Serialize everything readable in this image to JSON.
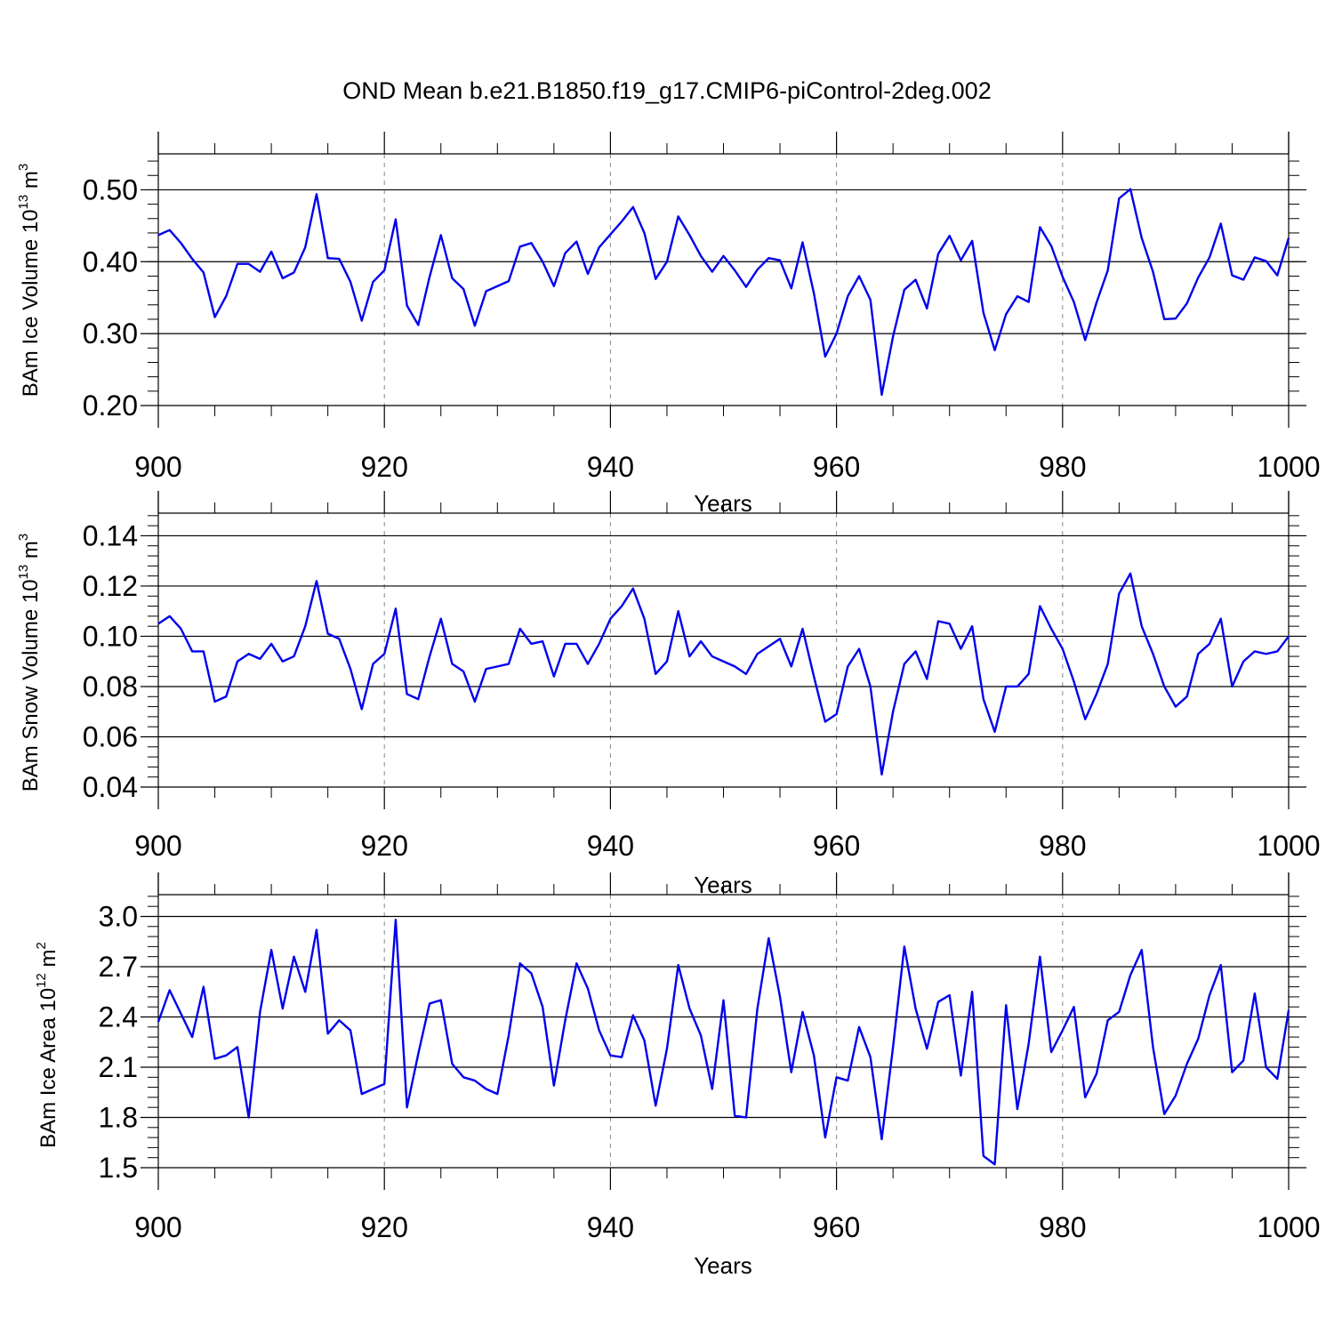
{
  "title": "OND Mean b.e21.B1850.f19_g17.CMIP6-piControl-2deg.002",
  "chart_data": [
    {
      "type": "line",
      "ylabel_prefix": "BAm Ice Volume 10",
      "ylabel_exp": "13",
      "ylabel_unit": "m",
      "ylabel_unit_exp": "3",
      "xlabel": "Years",
      "xlim": [
        900,
        1000
      ],
      "ylim": [
        0.2,
        0.55
      ],
      "yticks": [
        0.2,
        0.3,
        0.4,
        0.5
      ],
      "ytick_labels": [
        "0.20",
        "0.30",
        "0.40",
        "0.50"
      ],
      "xticks": [
        900,
        920,
        940,
        960,
        980,
        1000
      ],
      "xtick_labels": [
        "900",
        "920",
        "940",
        "960",
        "980",
        "1000"
      ],
      "color": "#0000ee",
      "series": [
        {
          "name": "ice_volume",
          "x_start": 900,
          "values": [
            0.437,
            0.444,
            0.426,
            0.404,
            0.385,
            0.323,
            0.352,
            0.397,
            0.397,
            0.386,
            0.414,
            0.377,
            0.385,
            0.42,
            0.494,
            0.405,
            0.404,
            0.372,
            0.318,
            0.372,
            0.388,
            0.459,
            0.339,
            0.312,
            0.379,
            0.437,
            0.377,
            0.362,
            0.311,
            0.359,
            0.366,
            0.373,
            0.421,
            0.426,
            0.4,
            0.366,
            0.412,
            0.428,
            0.383,
            0.42,
            0.438,
            0.456,
            0.476,
            0.44,
            0.376,
            0.4,
            0.463,
            0.437,
            0.408,
            0.386,
            0.408,
            0.388,
            0.365,
            0.389,
            0.405,
            0.402,
            0.363,
            0.427,
            0.356,
            0.268,
            0.3,
            0.352,
            0.38,
            0.347,
            0.215,
            0.296,
            0.361,
            0.375,
            0.335,
            0.411,
            0.436,
            0.402,
            0.429,
            0.329,
            0.277,
            0.327,
            0.352,
            0.344,
            0.448,
            0.422,
            0.379,
            0.344,
            0.291,
            0.343,
            0.388,
            0.488,
            0.501,
            0.433,
            0.386,
            0.32,
            0.321,
            0.342,
            0.378,
            0.406,
            0.453,
            0.381,
            0.375,
            0.406,
            0.401,
            0.381,
            0.433
          ]
        }
      ]
    },
    {
      "type": "line",
      "ylabel_prefix": "BAm Snow Volume 10",
      "ylabel_exp": "13",
      "ylabel_unit": "m",
      "ylabel_unit_exp": "3",
      "xlabel": "Years",
      "xlim": [
        900,
        1000
      ],
      "ylim": [
        0.04,
        0.149
      ],
      "yticks": [
        0.04,
        0.06,
        0.08,
        0.1,
        0.12,
        0.14
      ],
      "ytick_labels": [
        "0.04",
        "0.06",
        "0.08",
        "0.10",
        "0.12",
        "0.14"
      ],
      "xticks": [
        900,
        920,
        940,
        960,
        980,
        1000
      ],
      "xtick_labels": [
        "900",
        "920",
        "940",
        "960",
        "980",
        "1000"
      ],
      "color": "#0000ee",
      "series": [
        {
          "name": "snow_volume",
          "x_start": 900,
          "values": [
            0.105,
            0.108,
            0.103,
            0.094,
            0.094,
            0.074,
            0.076,
            0.09,
            0.093,
            0.091,
            0.097,
            0.09,
            0.092,
            0.104,
            0.122,
            0.101,
            0.099,
            0.087,
            0.071,
            0.089,
            0.093,
            0.111,
            0.077,
            0.075,
            0.092,
            0.107,
            0.089,
            0.086,
            0.074,
            0.087,
            0.088,
            0.089,
            0.103,
            0.097,
            0.098,
            0.084,
            0.097,
            0.097,
            0.089,
            0.097,
            0.107,
            0.112,
            0.119,
            0.107,
            0.085,
            0.09,
            0.11,
            0.092,
            0.098,
            0.092,
            0.09,
            0.088,
            0.085,
            0.093,
            0.096,
            0.099,
            0.088,
            0.103,
            0.084,
            0.066,
            0.069,
            0.088,
            0.095,
            0.08,
            0.045,
            0.07,
            0.089,
            0.094,
            0.083,
            0.106,
            0.105,
            0.095,
            0.104,
            0.075,
            0.062,
            0.08,
            0.08,
            0.085,
            0.112,
            0.103,
            0.095,
            0.082,
            0.067,
            0.077,
            0.089,
            0.117,
            0.125,
            0.104,
            0.093,
            0.08,
            0.072,
            0.076,
            0.093,
            0.097,
            0.107,
            0.08,
            0.09,
            0.094,
            0.093,
            0.094,
            0.1
          ]
        }
      ]
    },
    {
      "type": "line",
      "ylabel_prefix": "BAm Ice Area 10",
      "ylabel_exp": "12",
      "ylabel_unit": "m",
      "ylabel_unit_exp": "2",
      "xlabel": "Years",
      "xlim": [
        900,
        1000
      ],
      "ylim": [
        1.5,
        3.13
      ],
      "yticks": [
        1.5,
        1.8,
        2.1,
        2.4,
        2.7,
        3.0
      ],
      "ytick_labels": [
        "1.5",
        "1.8",
        "2.1",
        "2.4",
        "2.7",
        "3.0"
      ],
      "xticks": [
        900,
        920,
        940,
        960,
        980,
        1000
      ],
      "xtick_labels": [
        "900",
        "920",
        "940",
        "960",
        "980",
        "1000"
      ],
      "color": "#0000ee",
      "series": [
        {
          "name": "ice_area",
          "x_start": 900,
          "values": [
            2.37,
            2.56,
            2.42,
            2.28,
            2.58,
            2.15,
            2.17,
            2.22,
            1.8,
            2.43,
            2.8,
            2.45,
            2.76,
            2.55,
            2.92,
            2.3,
            2.38,
            2.32,
            1.94,
            1.97,
            2.0,
            2.98,
            1.86,
            2.18,
            2.48,
            2.5,
            2.12,
            2.04,
            2.02,
            1.97,
            1.94,
            2.29,
            2.72,
            2.66,
            2.46,
            1.99,
            2.38,
            2.72,
            2.57,
            2.32,
            2.17,
            2.16,
            2.41,
            2.26,
            1.87,
            2.21,
            2.71,
            2.45,
            2.29,
            1.97,
            2.5,
            1.81,
            1.8,
            2.45,
            2.87,
            2.52,
            2.07,
            2.43,
            2.17,
            1.68,
            2.04,
            2.02,
            2.34,
            2.16,
            1.67,
            2.22,
            2.82,
            2.45,
            2.21,
            2.49,
            2.53,
            2.05,
            2.55,
            1.57,
            1.52,
            2.47,
            1.85,
            2.24,
            2.76,
            2.19,
            2.32,
            2.46,
            1.92,
            2.06,
            2.38,
            2.43,
            2.65,
            2.8,
            2.22,
            1.82,
            1.93,
            2.12,
            2.27,
            2.53,
            2.71,
            2.07,
            2.14,
            2.54,
            2.1,
            2.03,
            2.44
          ]
        }
      ]
    }
  ]
}
